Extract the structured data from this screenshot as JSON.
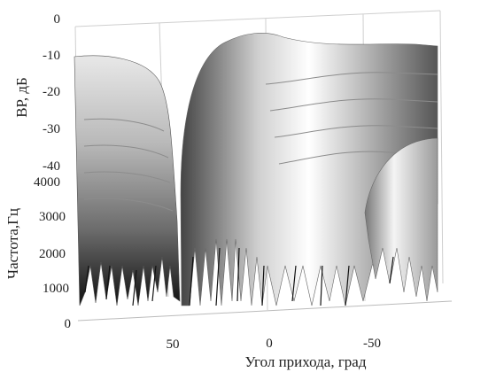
{
  "chart_data": {
    "type": "area",
    "title": "",
    "xlabel": "Угол прихода, град",
    "ylabel": "Частота,Гц",
    "zlabel": "ВР, дБ",
    "x_ticks": [
      "50",
      "0",
      "-50"
    ],
    "y_ticks": [
      "0",
      "1000",
      "2000",
      "3000",
      "4000"
    ],
    "z_ticks": [
      "0",
      "-10",
      "-20",
      "-30",
      "-40"
    ],
    "xlim": [
      90,
      -90
    ],
    "ylim": [
      0,
      4000
    ],
    "zlim": [
      -40,
      0
    ],
    "grid": true,
    "colormap": "grayscale",
    "series": [
      {
        "x": [
          90,
          80,
          70,
          60,
          55,
          50,
          45,
          40,
          35,
          30,
          25,
          20,
          15,
          10,
          5,
          0,
          -5,
          -10,
          -20,
          -30,
          -40,
          -50,
          -60,
          -70,
          -80,
          -90
        ],
        "z_max_db": [
          -10,
          -10,
          -12,
          -16,
          -22,
          -40,
          -20,
          -10,
          -6,
          -4,
          -2,
          -1,
          -1,
          -2,
          -4,
          -6,
          -8,
          -10,
          -10,
          -9,
          -8,
          -9,
          -11,
          -8,
          -6,
          -8
        ]
      }
    ]
  }
}
